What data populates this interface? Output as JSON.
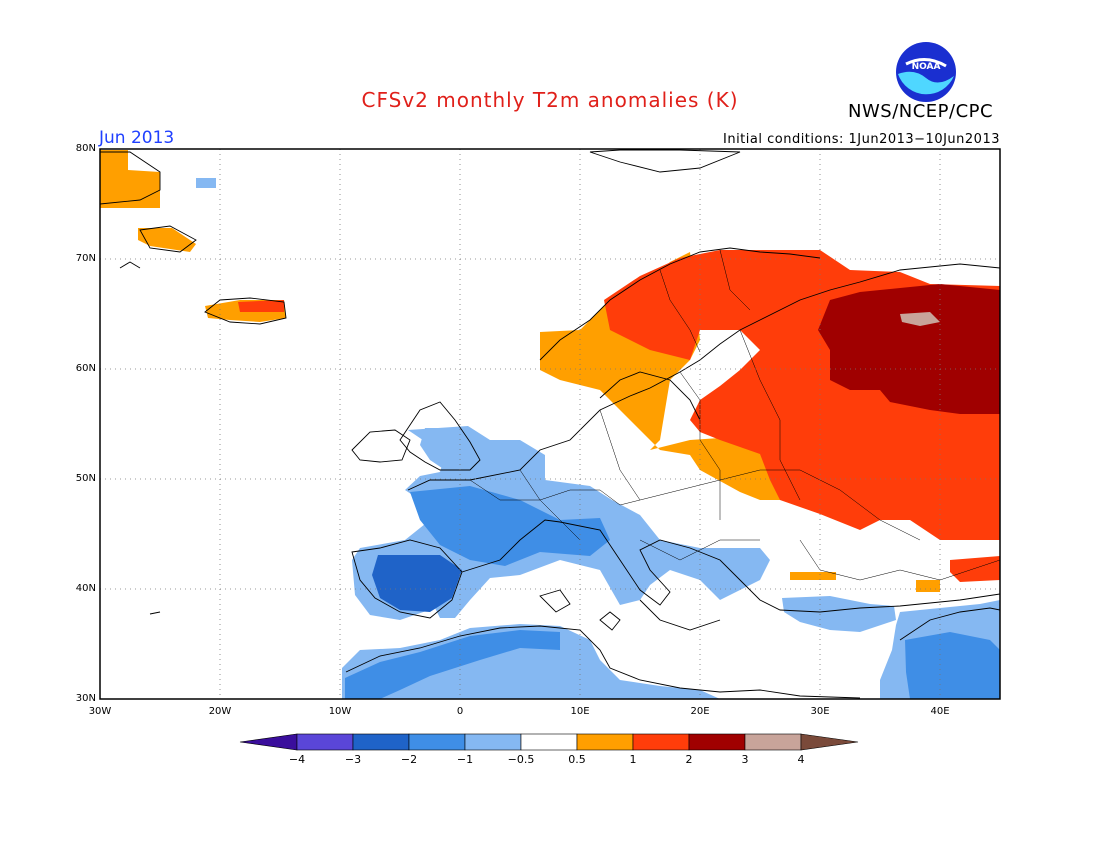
{
  "header": {
    "title": "CFSv2 monthly T2m anomalies (K)",
    "month": "Jun 2013",
    "initial_conditions": "Initial conditions: 1Jun2013−10Jun2013",
    "agency": "NWS/NCEP/CPC",
    "logo_text": "NOAA"
  },
  "map": {
    "lat_range": [
      30,
      80
    ],
    "lon_range": [
      -30,
      45
    ],
    "y_ticks": [
      "80N",
      "70N",
      "60N",
      "50N",
      "40N",
      "30N"
    ],
    "x_ticks": [
      "30W",
      "20W",
      "10W",
      "0",
      "10E",
      "20E",
      "30E",
      "40E"
    ],
    "anomaly_regions": [
      {
        "region": "Scandinavia / Western Russia",
        "category": "1 to 3 K warm"
      },
      {
        "region": "Northwestern Russia",
        "category": "2 to 3 K warm"
      },
      {
        "region": "Iberia / France / Maghreb",
        "category": "-3 to -0.5 K cold"
      },
      {
        "region": "Turkey / Middle East",
        "category": "-2 to -0.5 K cold"
      }
    ]
  },
  "colorbar": {
    "labels": [
      "−4",
      "−3",
      "−2",
      "−1",
      "−0.5",
      "0.5",
      "1",
      "2",
      "3",
      "4"
    ],
    "colors": [
      "#3a0e9c",
      "#5a46d8",
      "#1f63c8",
      "#3f8ee6",
      "#85b8f2",
      "#ffffff",
      "#ff9f00",
      "#ff3d0a",
      "#a00000",
      "#c8a49a",
      "#7a4a3a"
    ]
  }
}
